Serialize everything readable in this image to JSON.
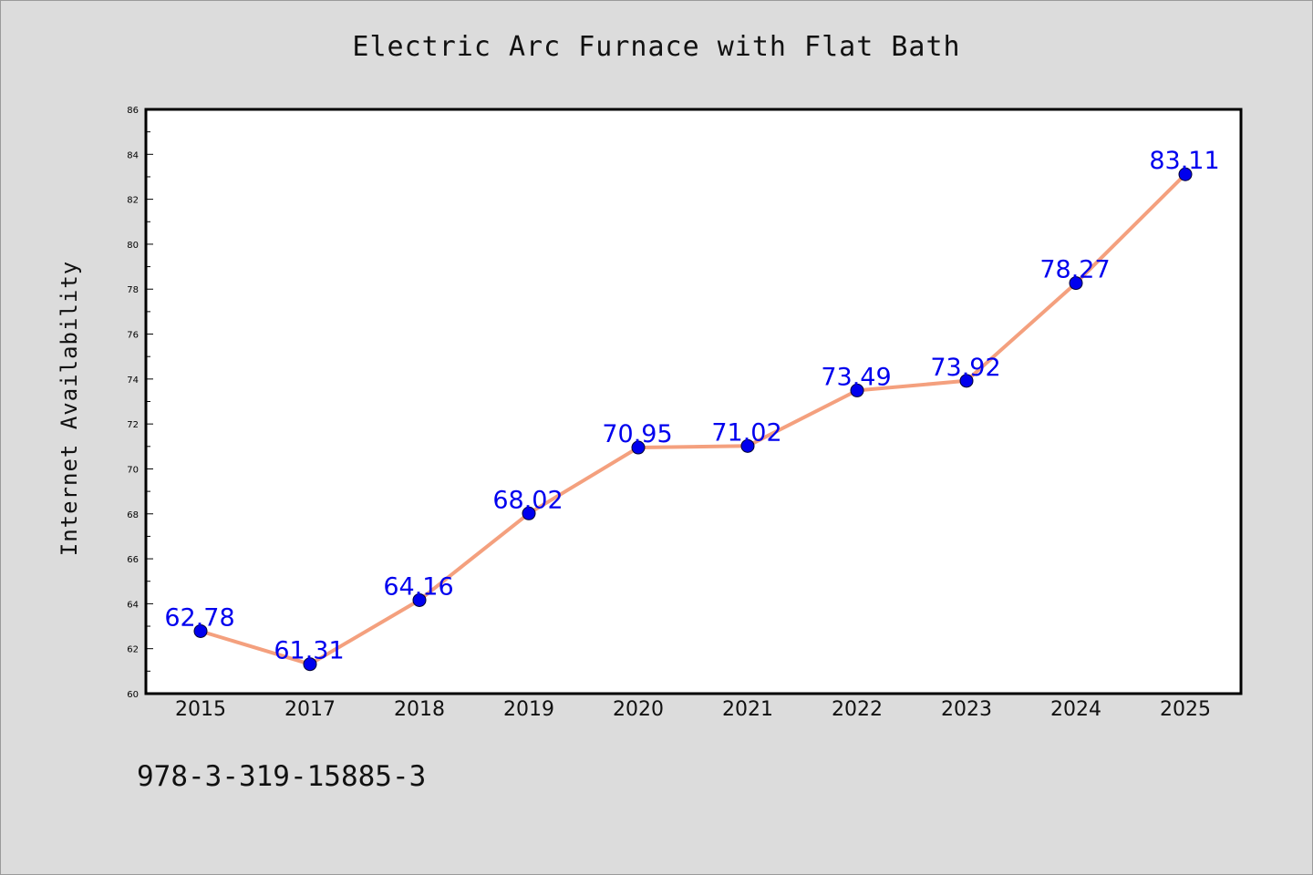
{
  "chart_data": {
    "type": "line",
    "title": "Electric Arc Furnace with Flat Bath",
    "xlabel": "",
    "ylabel": "Internet Availability",
    "categories": [
      "2015",
      "2017",
      "2018",
      "2019",
      "2020",
      "2021",
      "2022",
      "2023",
      "2024",
      "2025"
    ],
    "series": [
      {
        "values": [
          62.78,
          61.31,
          64.16,
          68.02,
          70.95,
          71.02,
          73.49,
          73.92,
          78.27,
          83.11
        ],
        "labels": [
          "62.78",
          "61.31",
          "64.16",
          "68.02",
          "70.95",
          "71.02",
          "73.49",
          "73.92",
          "78.27",
          "83.11"
        ]
      }
    ],
    "ylim": [
      60,
      86
    ],
    "yticks": [
      "60",
      "62",
      "64",
      "66",
      "68",
      "70",
      "72",
      "74",
      "76",
      "78",
      "80",
      "82",
      "84",
      "86"
    ],
    "grid": false,
    "legend": "none",
    "colors": {
      "line": "#f4a07e",
      "marker": "#0000ee",
      "label": "#0000ee",
      "axis": "#000000",
      "plot_bg": "#ffffff",
      "figure_bg": "#dcdcdc"
    }
  },
  "footer": {
    "code": "978-3-319-15885-3"
  }
}
